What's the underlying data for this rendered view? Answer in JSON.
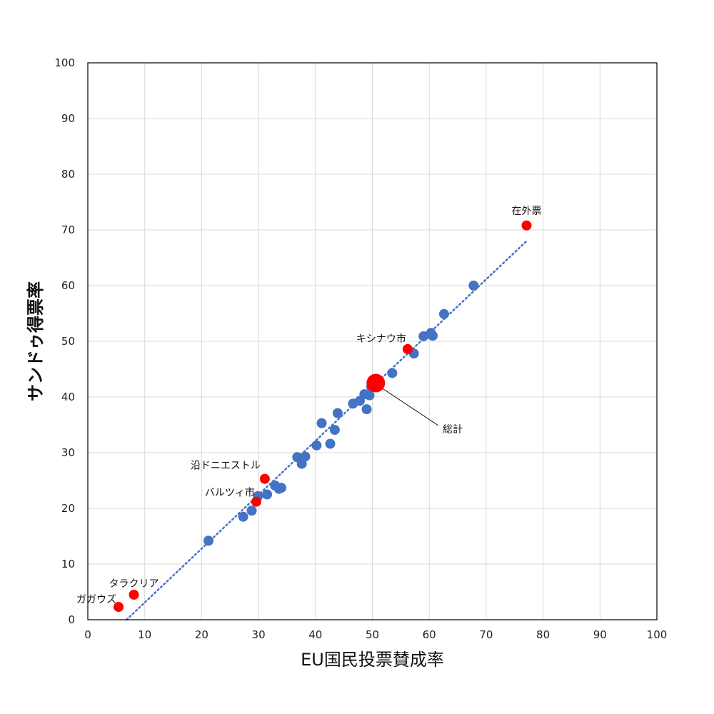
{
  "chart_data": {
    "type": "scatter",
    "xlabel": "EU国民投票賛成率",
    "ylabel": "サンドゥ得票率",
    "xlim": [
      0,
      100
    ],
    "ylim": [
      0,
      100
    ],
    "xticks": [
      0,
      10,
      20,
      30,
      40,
      50,
      60,
      70,
      80,
      90,
      100
    ],
    "yticks": [
      0,
      10,
      20,
      30,
      40,
      50,
      60,
      70,
      80,
      90,
      100
    ],
    "grid": true,
    "colors": {
      "regions": "#4472c4",
      "highlighted": "#ff0000",
      "trendline": "#4472c4",
      "grid": "#d9d9d9",
      "border": "#000000"
    },
    "series": [
      {
        "points": [
          {
            "x": 21.2,
            "y": 14.2
          },
          {
            "x": 27.3,
            "y": 18.5
          },
          {
            "x": 28.8,
            "y": 19.6
          },
          {
            "x": 29.9,
            "y": 22.2
          },
          {
            "x": 31.5,
            "y": 22.5
          },
          {
            "x": 32.9,
            "y": 24.1
          },
          {
            "x": 33.6,
            "y": 23.5
          },
          {
            "x": 34.0,
            "y": 23.7
          },
          {
            "x": 36.8,
            "y": 29.2
          },
          {
            "x": 37.6,
            "y": 28.0
          },
          {
            "x": 38.2,
            "y": 29.3
          },
          {
            "x": 40.2,
            "y": 31.3
          },
          {
            "x": 41.1,
            "y": 35.3
          },
          {
            "x": 42.6,
            "y": 31.6
          },
          {
            "x": 43.4,
            "y": 34.1
          },
          {
            "x": 43.9,
            "y": 37.1
          },
          {
            "x": 46.6,
            "y": 38.8
          },
          {
            "x": 47.8,
            "y": 39.3
          },
          {
            "x": 48.6,
            "y": 40.5
          },
          {
            "x": 49.0,
            "y": 37.8
          },
          {
            "x": 49.5,
            "y": 40.3
          },
          {
            "x": 49.8,
            "y": 41.8
          },
          {
            "x": 50.2,
            "y": 43.0
          },
          {
            "x": 53.5,
            "y": 44.3
          },
          {
            "x": 57.3,
            "y": 47.8
          },
          {
            "x": 59.0,
            "y": 50.9
          },
          {
            "x": 60.3,
            "y": 51.5
          },
          {
            "x": 60.6,
            "y": 51.0
          },
          {
            "x": 62.6,
            "y": 54.9
          },
          {
            "x": 67.8,
            "y": 60.0
          }
        ]
      },
      {
        "points": [
          {
            "x": 77.1,
            "y": 70.8,
            "label": "在外票"
          },
          {
            "x": 56.2,
            "y": 48.6,
            "label": "キシナウ市"
          },
          {
            "x": 50.6,
            "y": 42.5,
            "label": "総計"
          },
          {
            "x": 31.1,
            "y": 25.3,
            "label": "沿ドニエストル"
          },
          {
            "x": 29.6,
            "y": 21.2,
            "label": "バルツィ市"
          },
          {
            "x": 8.1,
            "y": 4.5,
            "label": "タラクリア"
          },
          {
            "x": 5.4,
            "y": 2.3,
            "label": "ガガウズ"
          }
        ]
      }
    ],
    "trendline": {
      "style": "dotted",
      "x_range": [
        6.8,
        77.0
      ],
      "y_range": [
        0.0,
        67.9
      ]
    }
  }
}
